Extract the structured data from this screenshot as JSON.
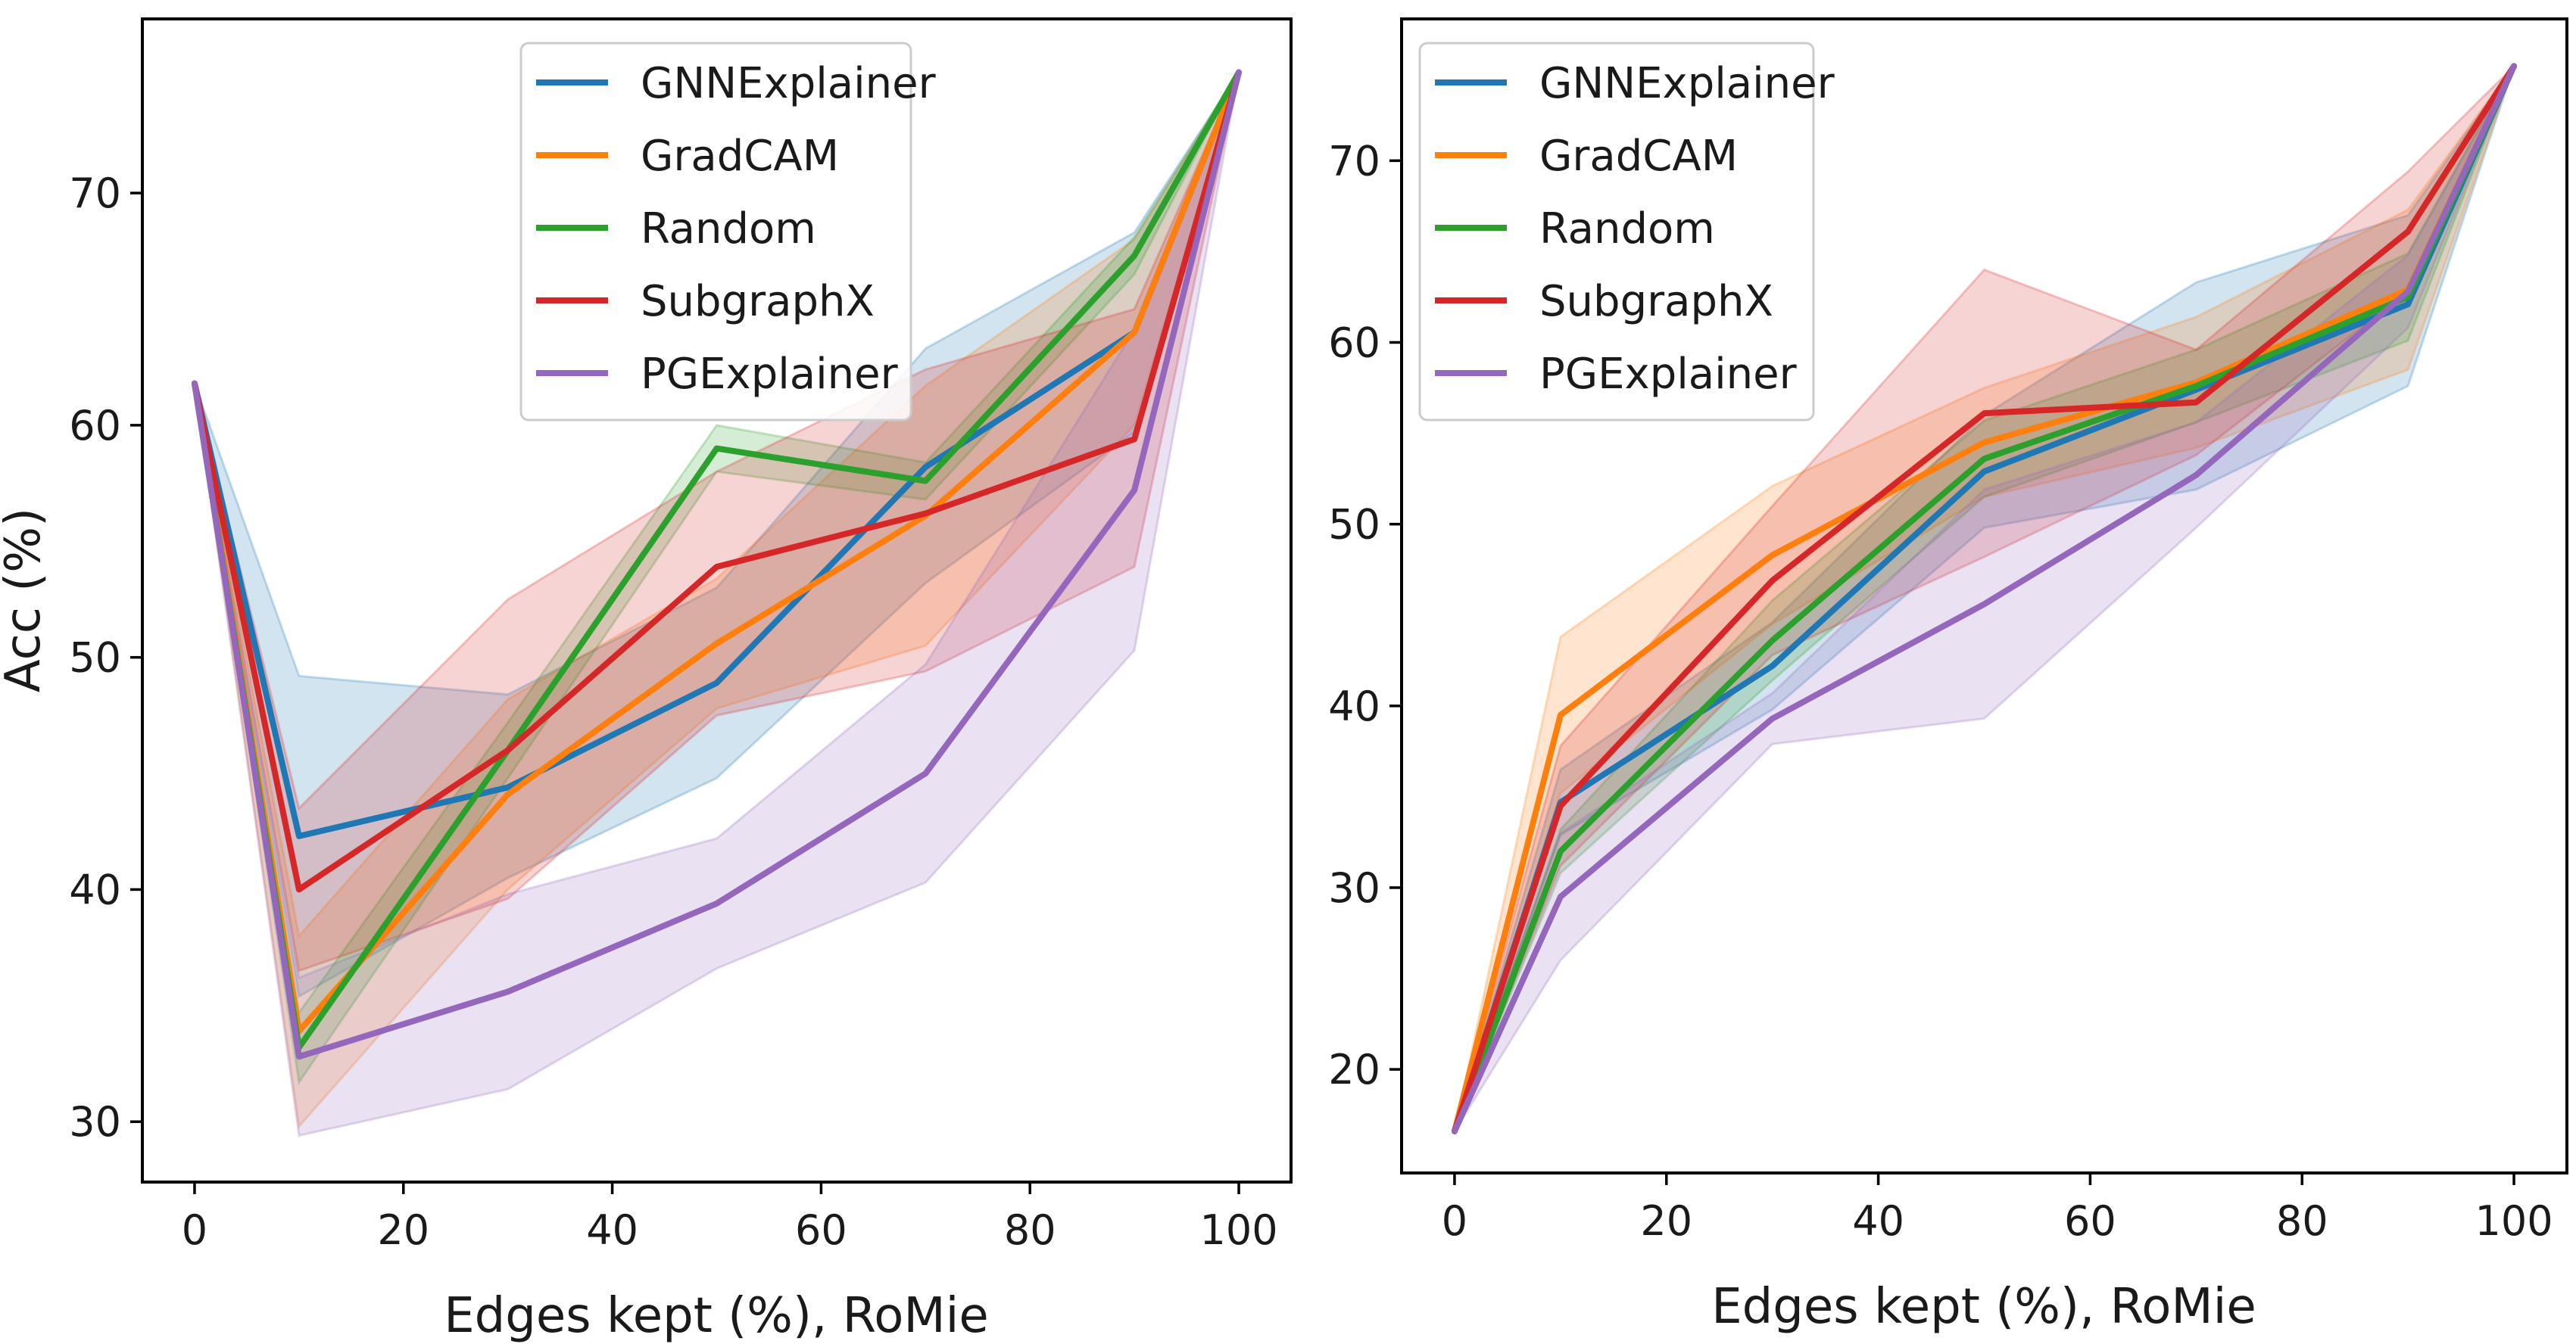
{
  "chart_data": [
    {
      "type": "line",
      "xlabel": "Edges kept (%), RoMie",
      "ylabel": "Acc (%)",
      "xlim": [
        -5,
        105
      ],
      "ylim": [
        27.4,
        77.5
      ],
      "xticks": [
        0,
        20,
        40,
        60,
        80,
        100
      ],
      "yticks": [
        30,
        40,
        50,
        60,
        70
      ],
      "legend_position": "top-center",
      "x": [
        0,
        10,
        30,
        50,
        70,
        90,
        100
      ],
      "series": [
        {
          "name": "GNNExplainer",
          "color": "#1f77b4",
          "values": [
            61.8,
            42.3,
            44.4,
            48.9,
            58.2,
            64.0,
            75.2
          ],
          "lower": [
            61.8,
            35.4,
            40.5,
            44.8,
            53.2,
            59.7,
            75.2
          ],
          "upper": [
            61.8,
            49.2,
            48.4,
            53.0,
            63.3,
            68.3,
            75.2
          ]
        },
        {
          "name": "GradCAM",
          "color": "#ff7f0e",
          "values": [
            61.8,
            33.9,
            44.1,
            50.6,
            56.1,
            64.0,
            75.2
          ],
          "lower": [
            61.8,
            29.8,
            40.0,
            47.8,
            50.5,
            60.0,
            75.2
          ],
          "upper": [
            61.8,
            38.0,
            48.2,
            53.4,
            61.7,
            68.0,
            75.2
          ]
        },
        {
          "name": "Random",
          "color": "#2ca02c",
          "values": [
            61.8,
            33.2,
            46.0,
            59.0,
            57.6,
            67.3,
            75.2
          ],
          "lower": [
            61.8,
            31.7,
            44.8,
            58.0,
            56.8,
            66.5,
            75.2
          ],
          "upper": [
            61.8,
            34.7,
            47.2,
            60.0,
            58.4,
            68.1,
            75.2
          ]
        },
        {
          "name": "SubgraphX",
          "color": "#d62728",
          "values": [
            61.8,
            40.0,
            46.0,
            53.9,
            56.2,
            59.4,
            75.2
          ],
          "lower": [
            61.8,
            36.5,
            39.6,
            47.5,
            49.4,
            53.9,
            75.2
          ],
          "upper": [
            61.8,
            43.5,
            52.5,
            58.0,
            62.4,
            65.0,
            75.2
          ]
        },
        {
          "name": "PGExplainer",
          "color": "#9467bd",
          "values": [
            61.8,
            32.8,
            35.6,
            39.4,
            45.0,
            57.2,
            75.2
          ],
          "lower": [
            61.8,
            29.4,
            31.4,
            36.6,
            40.3,
            50.3,
            75.2
          ],
          "upper": [
            61.8,
            36.2,
            39.8,
            42.2,
            49.7,
            64.1,
            75.2
          ]
        }
      ]
    },
    {
      "type": "line",
      "xlabel": "Edges kept (%), RoMie",
      "ylabel": "",
      "xlim": [
        -5,
        105
      ],
      "ylim": [
        14.3,
        77.8
      ],
      "xticks": [
        0,
        20,
        40,
        60,
        80,
        100
      ],
      "yticks": [
        20,
        30,
        40,
        50,
        60,
        70
      ],
      "legend_position": "top-left",
      "x": [
        0,
        10,
        30,
        50,
        70,
        90,
        100
      ],
      "series": [
        {
          "name": "GNNExplainer",
          "color": "#1f77b4",
          "values": [
            16.6,
            34.7,
            42.2,
            52.9,
            57.4,
            62.1,
            75.2
          ],
          "lower": [
            16.6,
            32.9,
            39.8,
            49.8,
            51.9,
            57.6,
            75.2
          ],
          "upper": [
            16.6,
            36.5,
            44.6,
            56.0,
            63.3,
            67.0,
            75.2
          ]
        },
        {
          "name": "GradCAM",
          "color": "#ff7f0e",
          "values": [
            16.6,
            39.5,
            48.3,
            54.5,
            57.8,
            62.9,
            75.2
          ],
          "lower": [
            16.6,
            35.2,
            44.5,
            51.5,
            54.2,
            58.5,
            75.2
          ],
          "upper": [
            16.6,
            43.8,
            52.1,
            57.5,
            61.4,
            67.3,
            75.2
          ]
        },
        {
          "name": "Random",
          "color": "#2ca02c",
          "values": [
            16.6,
            32.0,
            43.6,
            53.6,
            57.6,
            62.5,
            75.2
          ],
          "lower": [
            16.6,
            30.8,
            41.4,
            51.5,
            55.6,
            60.1,
            75.2
          ],
          "upper": [
            16.6,
            33.2,
            45.8,
            55.7,
            59.6,
            64.9,
            75.2
          ]
        },
        {
          "name": "SubgraphX",
          "color": "#d62728",
          "values": [
            16.6,
            34.5,
            46.9,
            56.1,
            56.7,
            66.1,
            75.2
          ],
          "lower": [
            16.6,
            31.2,
            42.8,
            48.2,
            53.8,
            62.8,
            75.2
          ],
          "upper": [
            16.6,
            37.8,
            51.0,
            64.0,
            59.6,
            69.4,
            75.2
          ]
        },
        {
          "name": "PGExplainer",
          "color": "#9467bd",
          "values": [
            16.6,
            29.5,
            39.3,
            45.6,
            52.7,
            62.8,
            75.2
          ],
          "lower": [
            16.6,
            26.0,
            37.9,
            39.3,
            49.8,
            60.8,
            75.2
          ],
          "upper": [
            16.6,
            33.0,
            40.7,
            51.9,
            55.6,
            64.8,
            75.2
          ]
        }
      ]
    }
  ]
}
